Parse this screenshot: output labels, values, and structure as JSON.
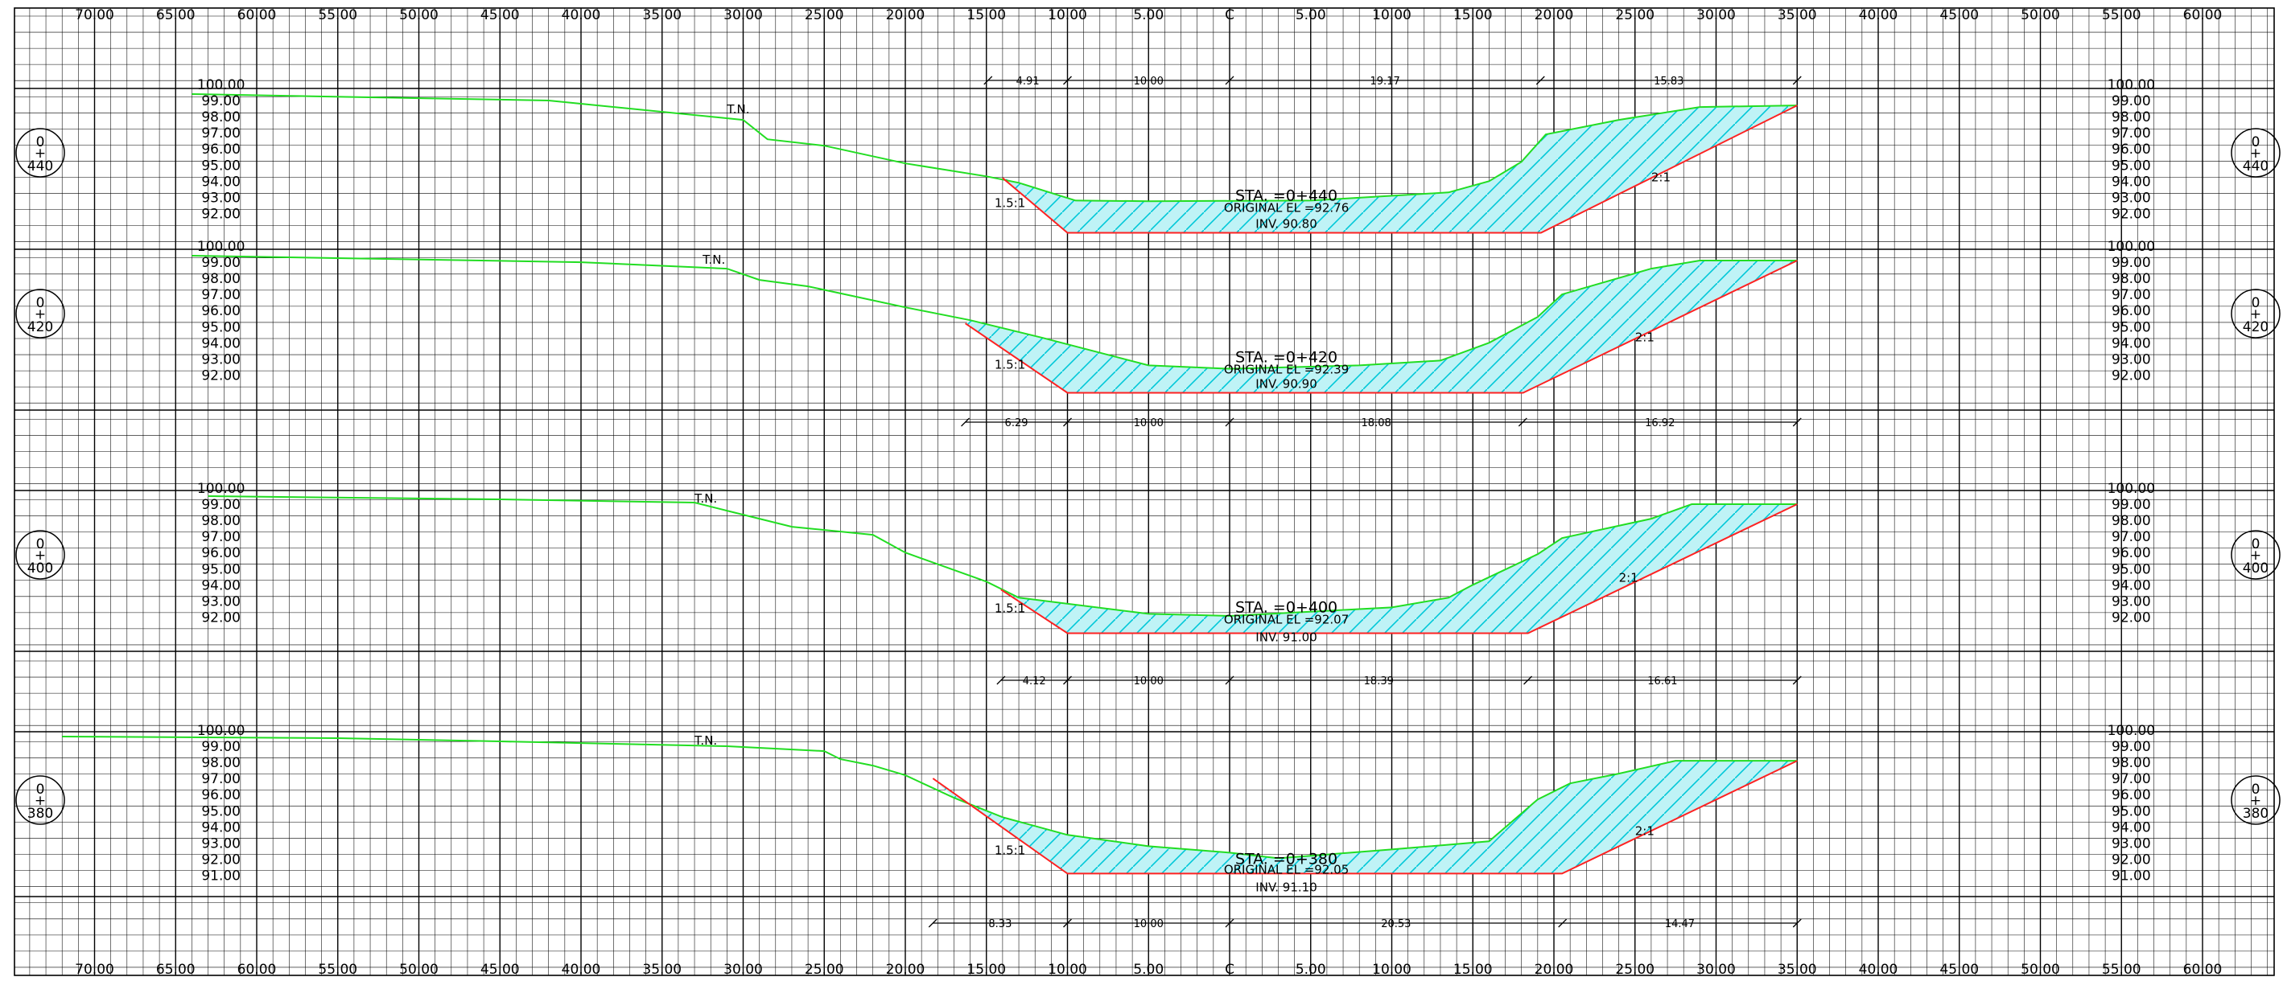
{
  "drawing": {
    "x_ticks": [
      "70.00",
      "65.00",
      "60.00",
      "55.00",
      "50.00",
      "45.00",
      "40.00",
      "35.00",
      "30.00",
      "25.00",
      "20.00",
      "15.00",
      "10.00",
      "5.00",
      "C",
      "5.00",
      "10.00",
      "15.00",
      "20.00",
      "25.00",
      "30.00",
      "35.00",
      "40.00",
      "45.00",
      "50.00",
      "55.00",
      "60.00"
    ],
    "colors": {
      "grid": "#000000",
      "ground": "#22dd22",
      "design": "#ff2222",
      "hatch": "#00c8d8",
      "fill": "#bff3f6"
    },
    "sections": [
      {
        "station_top": "0",
        "station_bottom": "440",
        "elev_labels": [
          "100.00",
          "99.00",
          "98.00",
          "97.00",
          "96.00",
          "95.00",
          "94.00",
          "93.00",
          "92.00"
        ],
        "label_sta": "STA. =0+440",
        "label_orig": "ORIGINAL EL =92.76",
        "label_inv": "INV. 90.80",
        "tn": "T.N.",
        "slope_left": "1.5:1",
        "slope_right": "2:1",
        "dims": [
          "4.91",
          "10.00",
          "19.17",
          "15.83"
        ],
        "ground": [
          [
            -64,
            99.4
          ],
          [
            -42,
            99.0
          ],
          [
            -30,
            97.8
          ],
          [
            -28.5,
            96.6
          ],
          [
            -25,
            96.2
          ],
          [
            -20,
            95.1
          ],
          [
            -15,
            94.3
          ],
          [
            -13,
            93.9
          ],
          [
            -9.5,
            92.8
          ],
          [
            -5,
            92.76
          ],
          [
            5,
            92.8
          ],
          [
            13.5,
            93.3
          ],
          [
            16,
            94.0
          ],
          [
            18,
            95.2
          ],
          [
            19.5,
            96.9
          ],
          [
            24,
            97.8
          ],
          [
            29,
            98.6
          ],
          [
            35,
            98.7
          ]
        ],
        "design": [
          [
            -14.0,
            94.2
          ],
          [
            -10,
            90.8
          ],
          [
            19.2,
            90.8
          ],
          [
            35,
            98.7
          ]
        ]
      },
      {
        "station_top": "0",
        "station_bottom": "420",
        "elev_labels": [
          "100.00",
          "99.00",
          "98.00",
          "97.00",
          "96.00",
          "95.00",
          "94.00",
          "93.00",
          "92.00"
        ],
        "label_sta": "STA. =0+420",
        "label_orig": "ORIGINAL EL =92.39",
        "label_inv": "INV. 90.90",
        "tn": "T.N.",
        "slope_left": "1.5:1",
        "slope_right": "2:1",
        "dims": [
          "6.29",
          "10.00",
          "18.08",
          "16.92"
        ],
        "ground": [
          [
            -64,
            99.4
          ],
          [
            -40,
            99.0
          ],
          [
            -31,
            98.6
          ],
          [
            -29,
            97.9
          ],
          [
            -26,
            97.5
          ],
          [
            -20,
            96.2
          ],
          [
            -16,
            95.4
          ],
          [
            -11.5,
            94.3
          ],
          [
            -5,
            92.6
          ],
          [
            0,
            92.39
          ],
          [
            8,
            92.6
          ],
          [
            13,
            92.9
          ],
          [
            16,
            94.0
          ],
          [
            19,
            95.6
          ],
          [
            20.5,
            97.0
          ],
          [
            26,
            98.6
          ],
          [
            29,
            99.1
          ],
          [
            35,
            99.1
          ]
        ],
        "design": [
          [
            -16.3,
            95.2
          ],
          [
            -10,
            90.9
          ],
          [
            18.1,
            90.9
          ],
          [
            35,
            99.1
          ]
        ]
      },
      {
        "station_top": "0",
        "station_bottom": "400",
        "elev_labels": [
          "100.00",
          "99.00",
          "98.00",
          "97.00",
          "96.00",
          "95.00",
          "94.00",
          "93.00",
          "92.00"
        ],
        "label_sta": "STA. =0+400",
        "label_orig": "ORIGINAL EL =92.07",
        "label_inv": "INV. 91.00",
        "tn": "T.N.",
        "slope_left": "1.5:1",
        "slope_right": "2:1",
        "dims": [
          "4.12",
          "10.00",
          "18.39",
          "16.61"
        ],
        "ground": [
          [
            -63,
            99.5
          ],
          [
            -45,
            99.3
          ],
          [
            -33,
            99.1
          ],
          [
            -31,
            98.6
          ],
          [
            -27,
            97.6
          ],
          [
            -22,
            97.1
          ],
          [
            -20,
            96.0
          ],
          [
            -15,
            94.2
          ],
          [
            -13,
            93.2
          ],
          [
            -5,
            92.2
          ],
          [
            0,
            92.07
          ],
          [
            10,
            92.6
          ],
          [
            13.5,
            93.2
          ],
          [
            15,
            94.0
          ],
          [
            19,
            95.9
          ],
          [
            20.5,
            96.9
          ],
          [
            26,
            98.1
          ],
          [
            28.5,
            99.0
          ],
          [
            35,
            99.0
          ]
        ],
        "design": [
          [
            -14.1,
            93.7
          ],
          [
            -10,
            91.0
          ],
          [
            18.4,
            91.0
          ],
          [
            35,
            99.0
          ]
        ]
      },
      {
        "station_top": "0",
        "station_bottom": "380",
        "elev_labels": [
          "100.00",
          "99.00",
          "98.00",
          "97.00",
          "96.00",
          "95.00",
          "94.00",
          "93.00",
          "92.00",
          "91.00"
        ],
        "label_sta": "STA. =0+380",
        "label_orig": "ORIGINAL EL =92.05",
        "label_inv": "INV. 91.10",
        "tn": "T.N.",
        "slope_left": "1.5:1",
        "slope_right": "2:1",
        "dims": [
          "8.33",
          "10.00",
          "20.53",
          "14.47"
        ],
        "ground": [
          [
            -72,
            99.6
          ],
          [
            -55,
            99.5
          ],
          [
            -45,
            99.3
          ],
          [
            -31,
            99.0
          ],
          [
            -25,
            98.7
          ],
          [
            -24,
            98.2
          ],
          [
            -22,
            97.8
          ],
          [
            -20,
            97.2
          ],
          [
            -17,
            95.8
          ],
          [
            -14,
            94.6
          ],
          [
            -10,
            93.5
          ],
          [
            -5,
            92.8
          ],
          [
            0,
            92.4
          ],
          [
            3,
            92.05
          ],
          [
            10,
            92.6
          ],
          [
            16,
            93.1
          ],
          [
            17.5,
            94.4
          ],
          [
            19,
            95.7
          ],
          [
            21,
            96.7
          ],
          [
            24,
            97.3
          ],
          [
            27.5,
            98.1
          ],
          [
            35,
            98.1
          ]
        ],
        "design": [
          [
            -18.3,
            97.0
          ],
          [
            -10,
            91.1
          ],
          [
            20.5,
            91.1
          ],
          [
            35,
            98.1
          ]
        ]
      }
    ]
  }
}
